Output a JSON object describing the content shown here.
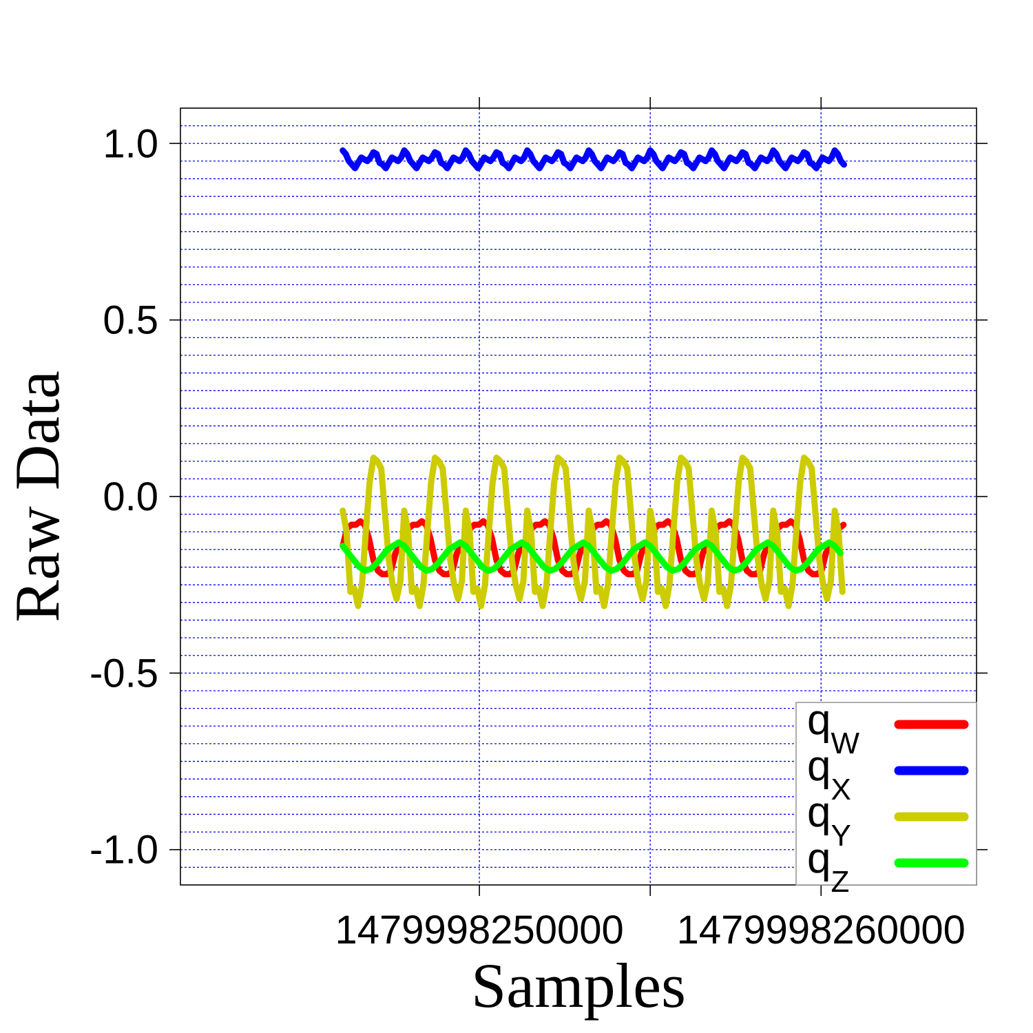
{
  "chart_data": {
    "type": "line",
    "title": "",
    "xlabel": "Samples",
    "ylabel": "Raw Data",
    "xlim": [
      1479998241250,
      1479998264550
    ],
    "ylim": [
      -1.1,
      1.1
    ],
    "x_ticks": [
      {
        "value": 1479998250000,
        "label": "1479998250000"
      },
      {
        "value": 1479998255000,
        "label": ""
      },
      {
        "value": 1479998260000,
        "label": "1479998260000"
      }
    ],
    "y_ticks": [
      {
        "value": 1.0,
        "label": "1.0"
      },
      {
        "value": 0.5,
        "label": "0.5"
      },
      {
        "value": 0.0,
        "label": "0.0"
      },
      {
        "value": -0.5,
        "label": "-0.5"
      },
      {
        "value": -1.0,
        "label": "-1.0"
      }
    ],
    "grid": true,
    "grid_color": "#0000ff",
    "legend_position": "bottom-right",
    "x_start": 1479998246000,
    "x_end": 1479998260700,
    "period": 1800,
    "series": [
      {
        "name": "qW",
        "legend_main": "q",
        "legend_sub": "W",
        "color": "#ff0000",
        "values": [
          -0.14,
          -0.09,
          -0.08,
          -0.08,
          -0.07,
          -0.08,
          -0.12,
          -0.18,
          -0.21,
          -0.22,
          -0.22,
          -0.21,
          -0.16,
          -0.14
        ]
      },
      {
        "name": "qX",
        "legend_main": "q",
        "legend_sub": "X",
        "color": "#0000ff",
        "values": [
          0.98,
          0.97,
          0.95,
          0.94,
          0.93,
          0.945,
          0.96,
          0.955,
          0.95,
          0.96,
          0.975,
          0.97,
          0.945,
          0.94,
          0.93,
          0.945,
          0.96,
          0.955,
          0.95,
          0.96
        ]
      },
      {
        "name": "qY",
        "legend_main": "q",
        "legend_sub": "Y",
        "color": "#cccc00",
        "values": [
          -0.04,
          -0.1,
          -0.27,
          -0.26,
          -0.31,
          -0.25,
          -0.1,
          0.04,
          0.11,
          0.1,
          0.08,
          -0.05,
          -0.18,
          -0.25,
          -0.29,
          -0.24
        ]
      },
      {
        "name": "qZ",
        "legend_main": "q",
        "legend_sub": "Z",
        "color": "#00ff00",
        "values": [
          -0.14,
          -0.16,
          -0.18,
          -0.2,
          -0.21,
          -0.205,
          -0.19,
          -0.17,
          -0.15,
          -0.14,
          -0.13
        ]
      }
    ]
  }
}
